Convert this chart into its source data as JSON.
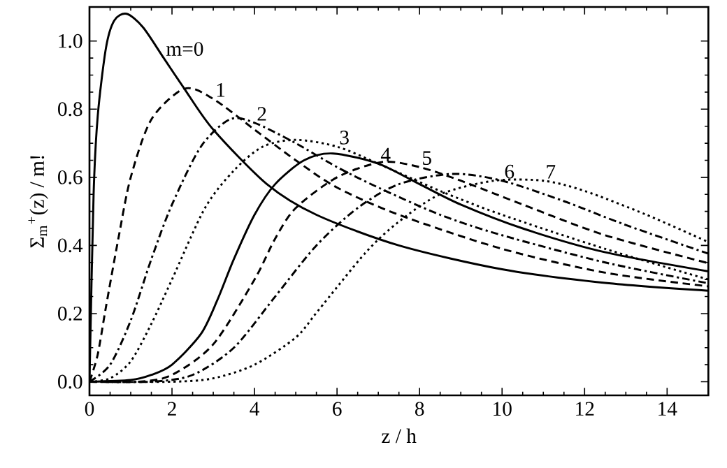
{
  "chart_data": {
    "type": "line",
    "xlabel": "z / h",
    "ylabel": "Σ$_{m}$$^{+}$(z) / m!",
    "xlim": [
      0,
      15
    ],
    "ylim": [
      -0.04,
      1.1
    ],
    "xticks": [
      0,
      2,
      4,
      6,
      8,
      10,
      12,
      14
    ],
    "yticks": [
      {
        "value": 0,
        "label": "0.0"
      },
      {
        "value": 0.2,
        "label": "0.2"
      },
      {
        "value": 0.4,
        "label": "0.4"
      },
      {
        "value": 0.6,
        "label": "0.6"
      },
      {
        "value": 0.8,
        "label": "0.8"
      },
      {
        "value": 1.0,
        "label": "1.0"
      }
    ],
    "grid": false,
    "marker": "none",
    "series": [
      {
        "name": "m=0",
        "color": "#000000",
        "line_style": "solid",
        "x": [
          0,
          0.1,
          0.2,
          0.4,
          0.6,
          0.9,
          1.3,
          1.8,
          2.3,
          3,
          4.3,
          5.5,
          7.5,
          10,
          12.5,
          15
        ],
        "values": [
          0,
          0.55,
          0.78,
          0.98,
          1.06,
          1.08,
          1.04,
          0.95,
          0.86,
          0.74,
          0.58,
          0.49,
          0.4,
          0.33,
          0.29,
          0.267
        ]
      },
      {
        "name": "1",
        "color": "#000000",
        "line_style": "dashed",
        "x": [
          0,
          0.2,
          0.4,
          0.7,
          1,
          1.5,
          2.3,
          3,
          4,
          5,
          6,
          7.5,
          10,
          12.5,
          15
        ],
        "values": [
          0,
          0.08,
          0.22,
          0.42,
          0.6,
          0.77,
          0.86,
          0.83,
          0.74,
          0.65,
          0.57,
          0.49,
          0.39,
          0.32,
          0.28
        ]
      },
      {
        "name": "2",
        "color": "#000000",
        "line_style": "dashdot",
        "x": [
          0,
          0.5,
          1,
          1.5,
          2,
          2.7,
          3.4,
          4,
          5,
          6,
          7,
          8.5,
          10,
          12.5,
          15
        ],
        "values": [
          0,
          0.05,
          0.18,
          0.36,
          0.52,
          0.69,
          0.77,
          0.76,
          0.7,
          0.63,
          0.57,
          0.49,
          0.43,
          0.35,
          0.289
        ]
      },
      {
        "name": "3",
        "color": "#000000",
        "line_style": "dotted",
        "x": [
          0,
          0.5,
          1,
          1.5,
          2,
          2.8,
          3.5,
          4.2,
          5,
          6,
          7,
          8.5,
          10,
          12.5,
          15
        ],
        "values": [
          0,
          0.01,
          0.06,
          0.17,
          0.3,
          0.51,
          0.62,
          0.69,
          0.71,
          0.69,
          0.64,
          0.56,
          0.49,
          0.39,
          0.3
        ]
      },
      {
        "name": "4",
        "color": "#000000",
        "line_style": "solid",
        "x": [
          0,
          1,
          1.5,
          2,
          2.7,
          3.1,
          3.5,
          4,
          4.5,
          5.2,
          5.9,
          7,
          8,
          9,
          10.5,
          12.5,
          15
        ],
        "values": [
          0,
          0.005,
          0.02,
          0.05,
          0.14,
          0.24,
          0.36,
          0.49,
          0.58,
          0.65,
          0.67,
          0.64,
          0.58,
          0.52,
          0.45,
          0.38,
          0.324
        ]
      },
      {
        "name": "5",
        "color": "#000000",
        "line_style": "dashed",
        "x": [
          0,
          1.2,
          2,
          3,
          4,
          4.5,
          5,
          6,
          7.1,
          8,
          9,
          10.5,
          12.5,
          15
        ],
        "values": [
          0,
          0,
          0.02,
          0.11,
          0.3,
          0.42,
          0.51,
          0.6,
          0.645,
          0.63,
          0.59,
          0.52,
          0.43,
          0.348
        ]
      },
      {
        "name": "6",
        "color": "#000000",
        "line_style": "dashdot",
        "x": [
          0,
          1.5,
          2.5,
          3.5,
          4.5,
          5.5,
          6.5,
          7.5,
          8.8,
          10,
          11.5,
          13,
          15
        ],
        "values": [
          0,
          0,
          0.02,
          0.1,
          0.25,
          0.4,
          0.51,
          0.58,
          0.61,
          0.59,
          0.53,
          0.46,
          0.376
        ]
      },
      {
        "name": "7",
        "color": "#000000",
        "line_style": "dotted",
        "x": [
          0,
          2,
          3,
          4,
          5,
          5.55,
          6.7,
          7.5,
          8.5,
          9.8,
          11,
          12,
          13.5,
          15
        ],
        "values": [
          0,
          0,
          0.01,
          0.05,
          0.13,
          0.21,
          0.38,
          0.47,
          0.55,
          0.59,
          0.59,
          0.56,
          0.49,
          0.41
        ]
      }
    ]
  }
}
